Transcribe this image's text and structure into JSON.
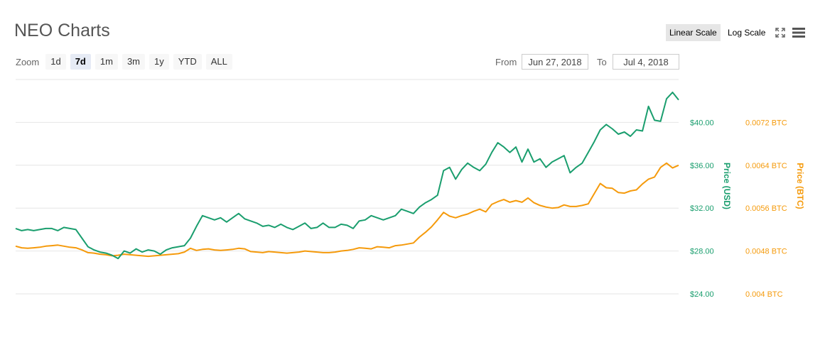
{
  "title": "NEO Charts",
  "toolbar": {
    "linear_scale": "Linear Scale",
    "log_scale": "Log Scale",
    "fullscreen_icon": "fullscreen-icon",
    "menu_icon": "hamburger-menu-icon"
  },
  "zoom": {
    "label": "Zoom",
    "buttons": [
      "1d",
      "7d",
      "1m",
      "3m",
      "1y",
      "YTD",
      "ALL"
    ],
    "active": "7d"
  },
  "range": {
    "from_label": "From",
    "from_value": "Jun 27, 2018",
    "to_label": "To",
    "to_value": "Jul 4, 2018"
  },
  "colors": {
    "usd": "#1a9e6e",
    "btc": "#f59a0b",
    "grid": "#e6e6e6"
  },
  "chart_data": {
    "type": "line",
    "y_axes": [
      {
        "label": "Price (USD)",
        "ticks": [
          "$24.00",
          "$28.00",
          "$32.00",
          "$36.00",
          "$40.00"
        ],
        "ylim": [
          24,
          44
        ]
      },
      {
        "label": "Price (BTC)",
        "ticks": [
          "0.004 BTC",
          "0.0048 BTC",
          "0.0056 BTC",
          "0.0064 BTC",
          "0.0072 BTC"
        ],
        "ylim": [
          0.004,
          0.008
        ]
      }
    ],
    "series": [
      {
        "name": "Price (USD)",
        "axis": 0,
        "values": [
          30.1,
          29.9,
          30.0,
          29.9,
          30.0,
          30.1,
          30.1,
          29.9,
          30.2,
          30.1,
          30.0,
          29.2,
          28.4,
          28.1,
          27.9,
          27.8,
          27.6,
          27.3,
          28.0,
          27.8,
          28.2,
          27.9,
          28.1,
          28.0,
          27.7,
          28.1,
          28.3,
          28.4,
          28.5,
          29.2,
          30.3,
          31.3,
          31.1,
          30.9,
          31.1,
          30.7,
          31.1,
          31.5,
          31.0,
          30.8,
          30.6,
          30.3,
          30.4,
          30.2,
          30.5,
          30.2,
          30.0,
          30.3,
          30.6,
          30.1,
          30.2,
          30.6,
          30.2,
          30.2,
          30.5,
          30.4,
          30.1,
          30.8,
          30.9,
          31.3,
          31.1,
          30.9,
          31.1,
          31.3,
          31.9,
          31.7,
          31.5,
          32.1,
          32.5,
          32.8,
          33.2,
          35.5,
          35.8,
          34.7,
          35.6,
          36.2,
          35.8,
          35.5,
          36.1,
          37.2,
          38.1,
          37.7,
          37.2,
          37.7,
          36.3,
          37.5,
          36.3,
          36.6,
          35.8,
          36.3,
          36.6,
          36.9,
          35.3,
          35.8,
          36.2,
          37.2,
          38.2,
          39.3,
          39.8,
          39.4,
          38.9,
          39.1,
          38.7,
          39.3,
          39.2,
          41.5,
          40.2,
          40.1,
          42.2,
          42.8,
          42.1
        ]
      },
      {
        "name": "Price (BTC)",
        "axis": 1,
        "values": [
          0.00489,
          0.00486,
          0.00485,
          0.00486,
          0.00487,
          0.00489,
          0.0049,
          0.00491,
          0.00489,
          0.00487,
          0.00486,
          0.00482,
          0.00477,
          0.00476,
          0.00474,
          0.00473,
          0.00471,
          0.00472,
          0.00474,
          0.00473,
          0.00472,
          0.00471,
          0.0047,
          0.00471,
          0.00472,
          0.00473,
          0.00474,
          0.00475,
          0.00478,
          0.00485,
          0.00481,
          0.00483,
          0.00484,
          0.00482,
          0.00481,
          0.00482,
          0.00483,
          0.00485,
          0.00484,
          0.00479,
          0.00478,
          0.00477,
          0.00479,
          0.00478,
          0.00477,
          0.00476,
          0.00477,
          0.00478,
          0.0048,
          0.00479,
          0.00478,
          0.00477,
          0.00477,
          0.00478,
          0.0048,
          0.00481,
          0.00483,
          0.00486,
          0.00485,
          0.00484,
          0.00488,
          0.00487,
          0.00486,
          0.0049,
          0.00491,
          0.00493,
          0.00495,
          0.00506,
          0.00515,
          0.00525,
          0.00538,
          0.00552,
          0.00545,
          0.00542,
          0.00546,
          0.00549,
          0.00554,
          0.00558,
          0.00553,
          0.00567,
          0.00572,
          0.00576,
          0.00571,
          0.00574,
          0.00571,
          0.00579,
          0.0057,
          0.00565,
          0.00562,
          0.0056,
          0.00561,
          0.00566,
          0.00563,
          0.00563,
          0.00565,
          0.00568,
          0.00587,
          0.00606,
          0.00598,
          0.00597,
          0.00589,
          0.00588,
          0.00592,
          0.00594,
          0.00605,
          0.00614,
          0.00618,
          0.00636,
          0.00644,
          0.00635,
          0.0064
        ]
      }
    ],
    "grid": true
  }
}
